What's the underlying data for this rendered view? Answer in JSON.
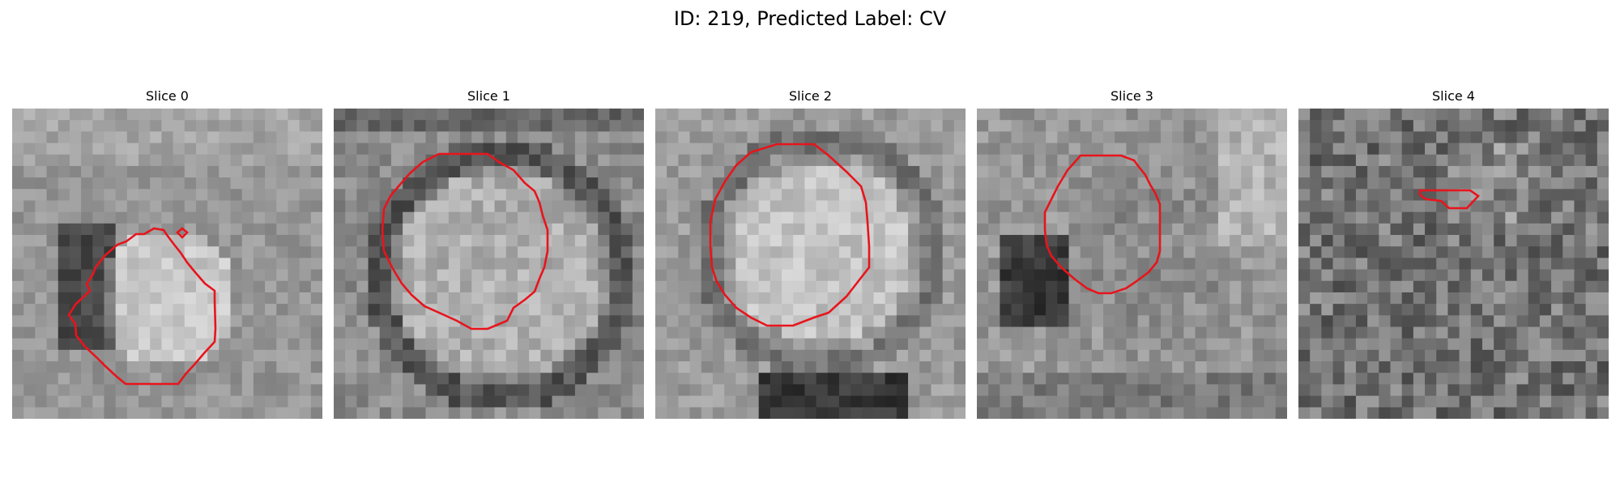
{
  "figure": {
    "title": "ID: 219, Predicted Label: CV"
  },
  "colors": {
    "contour": "#e8141c",
    "background": "#ffffff"
  },
  "panels": [
    {
      "title": "Slice 0",
      "image": "grayscale-microscopy-patch",
      "contour_color": "red"
    },
    {
      "title": "Slice 1",
      "image": "grayscale-microscopy-patch",
      "contour_color": "red"
    },
    {
      "title": "Slice 2",
      "image": "grayscale-microscopy-patch",
      "contour_color": "red"
    },
    {
      "title": "Slice 3",
      "image": "grayscale-microscopy-patch",
      "contour_color": "red"
    },
    {
      "title": "Slice 4",
      "image": "grayscale-microscopy-patch",
      "contour_color": "red"
    }
  ]
}
